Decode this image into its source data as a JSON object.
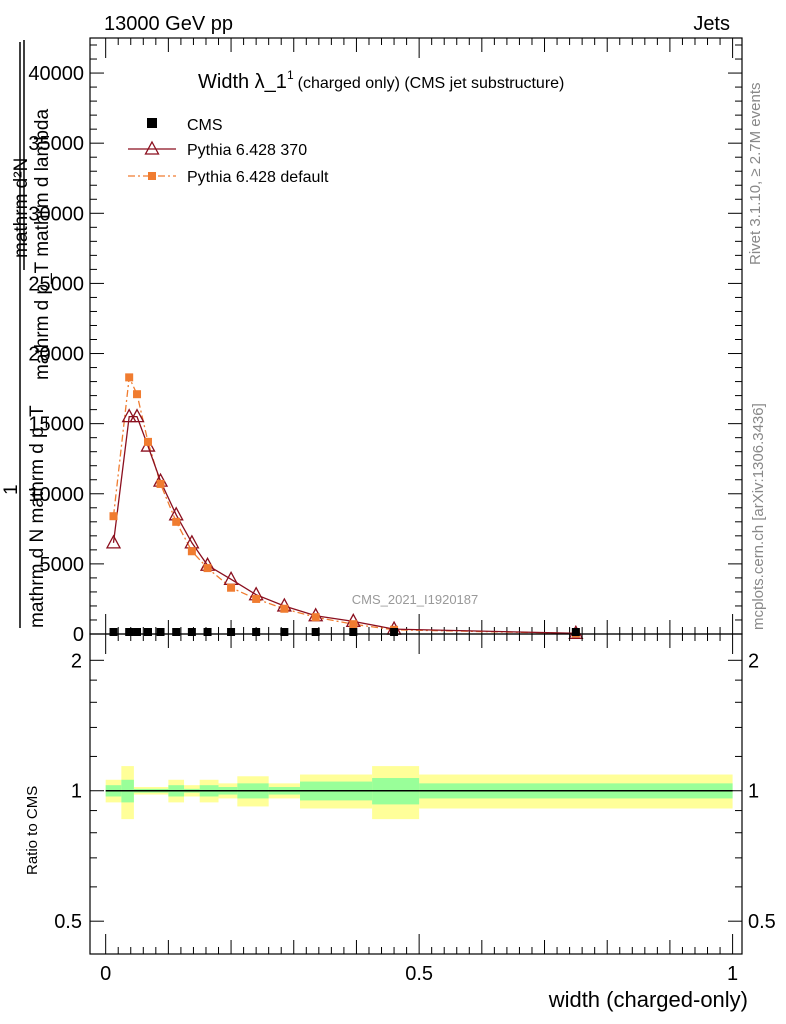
{
  "header": {
    "energy_label": "13000 GeV pp",
    "category_label": "Jets",
    "rivet_label": "Rivet 3.1.10, ≥ 2.7M events",
    "mcplots_label": "mcplots.cern.ch [arXiv:1306.3436]",
    "analysis_label": "CMS_2021_I1920187"
  },
  "chart_data": {
    "type": "line",
    "title_main": "Width λ_1",
    "title_sup": "1",
    "title_sub": "(charged only) (CMS jet substructure)",
    "ylabel_top": "mathrm d²N",
    "ylabel_top2": "mathrm d p_T mathrm d lambda",
    "ylabel_bottom": "mathrm d N mathrm d p_T",
    "ylabel_one": "1",
    "xlabel": "width (charged-only)",
    "ratio_ylabel": "Ratio to CMS",
    "xlim": [
      -0.025,
      1.015
    ],
    "ylim": [
      0,
      42500
    ],
    "ratio_ylim": [
      0.42,
      2.3
    ],
    "x_ticks": [
      0,
      0.5,
      1
    ],
    "x_tick_labels": [
      "0",
      "0.5",
      "1"
    ],
    "y_ticks": [
      0,
      5000,
      10000,
      15000,
      20000,
      25000,
      30000,
      35000,
      40000
    ],
    "y_tick_labels": [
      "0",
      "5000",
      "10000",
      "15000",
      "20000",
      "25000",
      "30000",
      "35000",
      "40000"
    ],
    "ratio_ticks": [
      0.5,
      1,
      2
    ],
    "ratio_tick_labels": [
      "0.5",
      "1",
      "2"
    ],
    "legend": [
      {
        "name": "CMS",
        "style": "marker-square",
        "color": "#000000"
      },
      {
        "name": "Pythia 6.428 370",
        "style": "line-triangle",
        "color": "#8b0f1e"
      },
      {
        "name": "Pythia 6.428 default",
        "style": "dashdot-square",
        "color": "#f07c30"
      }
    ],
    "x": [
      0.0125,
      0.0375,
      0.05,
      0.0675,
      0.0875,
      0.1125,
      0.1375,
      0.1625,
      0.2,
      0.24,
      0.285,
      0.335,
      0.395,
      0.46,
      0.75
    ],
    "series": [
      {
        "name": "CMS",
        "values": [
          50,
          50,
          50,
          50,
          50,
          50,
          50,
          50,
          50,
          50,
          50,
          50,
          50,
          20,
          5
        ]
      },
      {
        "name": "Pythia 6.428 370",
        "values": [
          6500,
          15500,
          15500,
          13400,
          10900,
          8500,
          6500,
          4900,
          3900,
          2800,
          2000,
          1300,
          900,
          350,
          50
        ]
      },
      {
        "name": "Pythia 6.428 default",
        "values": [
          8400,
          18300,
          17100,
          13700,
          10700,
          8000,
          5900,
          4700,
          3300,
          2500,
          1800,
          1200,
          700,
          300,
          40
        ]
      }
    ],
    "ratio_bins": [
      {
        "lo": 0.0,
        "hi": 0.025,
        "green": 0.03,
        "yellow": 0.06
      },
      {
        "lo": 0.025,
        "hi": 0.045,
        "green": 0.06,
        "yellow": 0.14
      },
      {
        "lo": 0.045,
        "hi": 0.1,
        "green": 0.01,
        "yellow": 0.02
      },
      {
        "lo": 0.1,
        "hi": 0.125,
        "green": 0.03,
        "yellow": 0.06
      },
      {
        "lo": 0.125,
        "hi": 0.15,
        "green": 0.01,
        "yellow": 0.03
      },
      {
        "lo": 0.15,
        "hi": 0.18,
        "green": 0.03,
        "yellow": 0.06
      },
      {
        "lo": 0.18,
        "hi": 0.21,
        "green": 0.02,
        "yellow": 0.04
      },
      {
        "lo": 0.21,
        "hi": 0.26,
        "green": 0.04,
        "yellow": 0.08
      },
      {
        "lo": 0.26,
        "hi": 0.31,
        "green": 0.02,
        "yellow": 0.04
      },
      {
        "lo": 0.31,
        "hi": 0.365,
        "green": 0.05,
        "yellow": 0.09
      },
      {
        "lo": 0.365,
        "hi": 0.425,
        "green": 0.05,
        "yellow": 0.09
      },
      {
        "lo": 0.425,
        "hi": 0.5,
        "green": 0.07,
        "yellow": 0.14
      },
      {
        "lo": 0.5,
        "hi": 1.0,
        "green": 0.04,
        "yellow": 0.09
      }
    ]
  },
  "colors": {
    "cms": "#000000",
    "pythia370": "#8b0f1e",
    "pythia_default": "#f07c30",
    "band_green": "#99ff99",
    "band_yellow": "#ffff99",
    "watermark": "#999999"
  }
}
